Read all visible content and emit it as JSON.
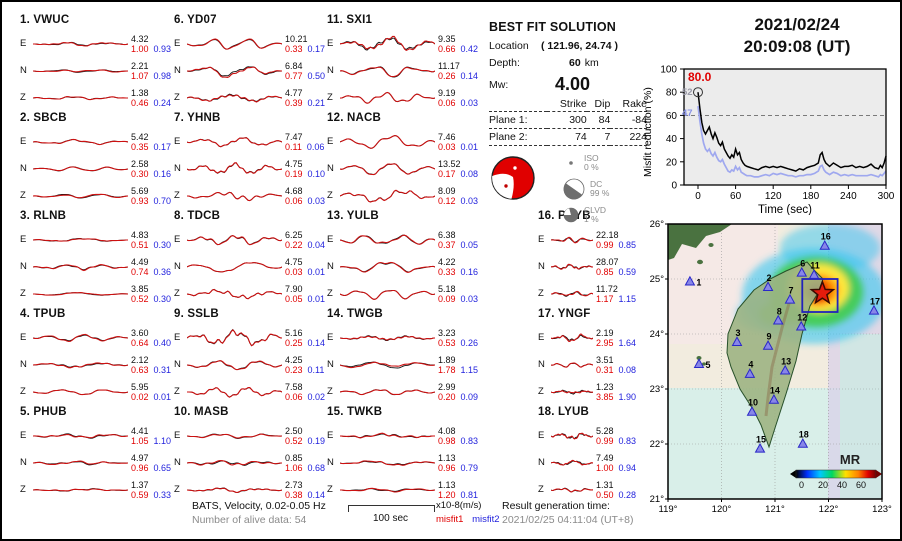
{
  "header": {
    "date": "2021/02/24",
    "time": "20:09:08  (UT)"
  },
  "stations": [
    {
      "num": "1.",
      "name": "VWUC",
      "comps": [
        {
          "c": "E",
          "amp": "4.32",
          "m1": "1.00",
          "m2": "0.93"
        },
        {
          "c": "N",
          "amp": "2.21",
          "m1": "1.07",
          "m2": "0.98"
        },
        {
          "c": "Z",
          "amp": "1.38",
          "m1": "0.46",
          "m2": "0.24"
        }
      ]
    },
    {
      "num": "2.",
      "name": "SBCB",
      "comps": [
        {
          "c": "E",
          "amp": "5.42",
          "m1": "0.35",
          "m2": "0.17"
        },
        {
          "c": "N",
          "amp": "2.58",
          "m1": "0.30",
          "m2": "0.16"
        },
        {
          "c": "Z",
          "amp": "5.69",
          "m1": "0.93",
          "m2": "0.70"
        }
      ]
    },
    {
      "num": "3.",
      "name": "RLNB",
      "comps": [
        {
          "c": "E",
          "amp": "4.83",
          "m1": "0.51",
          "m2": "0.30"
        },
        {
          "c": "N",
          "amp": "4.49",
          "m1": "0.74",
          "m2": "0.36"
        },
        {
          "c": "Z",
          "amp": "3.85",
          "m1": "0.52",
          "m2": "0.30"
        }
      ]
    },
    {
      "num": "4.",
      "name": "TPUB",
      "comps": [
        {
          "c": "E",
          "amp": "3.60",
          "m1": "0.64",
          "m2": "0.40"
        },
        {
          "c": "N",
          "amp": "2.12",
          "m1": "0.63",
          "m2": "0.31"
        },
        {
          "c": "Z",
          "amp": "5.95",
          "m1": "0.02",
          "m2": "0.01"
        }
      ]
    },
    {
      "num": "5.",
      "name": "PHUB",
      "comps": [
        {
          "c": "E",
          "amp": "4.41",
          "m1": "1.05",
          "m2": "1.10"
        },
        {
          "c": "N",
          "amp": "4.97",
          "m1": "0.96",
          "m2": "0.65"
        },
        {
          "c": "Z",
          "amp": "1.37",
          "m1": "0.59",
          "m2": "0.33"
        }
      ]
    },
    {
      "num": "6.",
      "name": "YD07",
      "comps": [
        {
          "c": "E",
          "amp": "10.21",
          "m1": "0.33",
          "m2": "0.17"
        },
        {
          "c": "N",
          "amp": "6.84",
          "m1": "0.77",
          "m2": "0.50"
        },
        {
          "c": "Z",
          "amp": "4.77",
          "m1": "0.39",
          "m2": "0.21"
        }
      ]
    },
    {
      "num": "7.",
      "name": "YHNB",
      "comps": [
        {
          "c": "E",
          "amp": "7.47",
          "m1": "0.11",
          "m2": "0.06"
        },
        {
          "c": "N",
          "amp": "4.75",
          "m1": "0.19",
          "m2": "0.10"
        },
        {
          "c": "Z",
          "amp": "4.68",
          "m1": "0.06",
          "m2": "0.03"
        }
      ]
    },
    {
      "num": "8.",
      "name": "TDCB",
      "comps": [
        {
          "c": "E",
          "amp": "6.25",
          "m1": "0.22",
          "m2": "0.04"
        },
        {
          "c": "N",
          "amp": "4.75",
          "m1": "0.03",
          "m2": "0.01"
        },
        {
          "c": "Z",
          "amp": "7.90",
          "m1": "0.05",
          "m2": "0.01"
        }
      ]
    },
    {
      "num": "9.",
      "name": "SSLB",
      "comps": [
        {
          "c": "E",
          "amp": "5.16",
          "m1": "0.25",
          "m2": "0.14"
        },
        {
          "c": "N",
          "amp": "4.25",
          "m1": "0.23",
          "m2": "0.11"
        },
        {
          "c": "Z",
          "amp": "7.58",
          "m1": "0.06",
          "m2": "0.02"
        }
      ]
    },
    {
      "num": "10.",
      "name": "MASB",
      "comps": [
        {
          "c": "E",
          "amp": "2.50",
          "m1": "0.52",
          "m2": "0.19"
        },
        {
          "c": "N",
          "amp": "0.85",
          "m1": "1.06",
          "m2": "0.68"
        },
        {
          "c": "Z",
          "amp": "2.73",
          "m1": "0.38",
          "m2": "0.14"
        }
      ]
    },
    {
      "num": "11.",
      "name": "SXI1",
      "comps": [
        {
          "c": "E",
          "amp": "9.35",
          "m1": "0.66",
          "m2": "0.42"
        },
        {
          "c": "N",
          "amp": "11.17",
          "m1": "0.26",
          "m2": "0.14"
        },
        {
          "c": "Z",
          "amp": "9.19",
          "m1": "0.06",
          "m2": "0.03"
        }
      ]
    },
    {
      "num": "12.",
      "name": "NACB",
      "comps": [
        {
          "c": "E",
          "amp": "7.46",
          "m1": "0.03",
          "m2": "0.01"
        },
        {
          "c": "N",
          "amp": "13.52",
          "m1": "0.17",
          "m2": "0.08"
        },
        {
          "c": "Z",
          "amp": "8.09",
          "m1": "0.12",
          "m2": "0.03"
        }
      ]
    },
    {
      "num": "13.",
      "name": "YULB",
      "comps": [
        {
          "c": "E",
          "amp": "6.38",
          "m1": "0.37",
          "m2": "0.05"
        },
        {
          "c": "N",
          "amp": "4.22",
          "m1": "0.33",
          "m2": "0.16"
        },
        {
          "c": "Z",
          "amp": "5.18",
          "m1": "0.09",
          "m2": "0.03"
        }
      ]
    },
    {
      "num": "14.",
      "name": "TWGB",
      "comps": [
        {
          "c": "E",
          "amp": "3.23",
          "m1": "0.53",
          "m2": "0.26"
        },
        {
          "c": "N",
          "amp": "1.89",
          "m1": "1.78",
          "m2": "1.15"
        },
        {
          "c": "Z",
          "amp": "2.99",
          "m1": "0.20",
          "m2": "0.09"
        }
      ]
    },
    {
      "num": "15.",
      "name": "TWKB",
      "comps": [
        {
          "c": "E",
          "amp": "4.08",
          "m1": "0.98",
          "m2": "0.83"
        },
        {
          "c": "N",
          "amp": "1.13",
          "m1": "0.96",
          "m2": "0.79"
        },
        {
          "c": "Z",
          "amp": "1.13",
          "m1": "1.20",
          "m2": "0.81"
        }
      ]
    },
    {
      "num": "16.",
      "name": "PCYB",
      "comps": [
        {
          "c": "E",
          "amp": "22.18",
          "m1": "0.99",
          "m2": "0.85"
        },
        {
          "c": "N",
          "amp": "28.07",
          "m1": "0.85",
          "m2": "0.59"
        },
        {
          "c": "Z",
          "amp": "11.72",
          "m1": "1.17",
          "m2": "1.15"
        }
      ]
    },
    {
      "num": "17.",
      "name": "YNGF",
      "comps": [
        {
          "c": "E",
          "amp": "2.19",
          "m1": "2.95",
          "m2": "1.64"
        },
        {
          "c": "N",
          "amp": "3.51",
          "m1": "0.31",
          "m2": "0.08"
        },
        {
          "c": "Z",
          "amp": "1.23",
          "m1": "3.85",
          "m2": "1.90"
        }
      ]
    },
    {
      "num": "18.",
      "name": "LYUB",
      "comps": [
        {
          "c": "E",
          "amp": "5.28",
          "m1": "0.99",
          "m2": "0.83"
        },
        {
          "c": "N",
          "amp": "7.49",
          "m1": "1.00",
          "m2": "0.94"
        },
        {
          "c": "Z",
          "amp": "1.31",
          "m1": "0.50",
          "m2": "0.28"
        }
      ]
    }
  ],
  "solution": {
    "title": "BEST FIT SOLUTION",
    "location_label": "Location",
    "location": "( 121.96,  24.74 )",
    "depth_label": "Depth:",
    "depth": "60",
    "depth_unit": "km",
    "mw_label": "Mw:",
    "mw": "4.00",
    "table": {
      "headers": [
        "Strike",
        "Dip",
        "Rake"
      ],
      "rows": [
        {
          "label": "Plane 1:",
          "strike": "300",
          "dip": "84",
          "rake": "-84"
        },
        {
          "label": "Plane 2:",
          "strike": "74",
          "dip": "7",
          "rake": "224"
        }
      ]
    },
    "decomposition": [
      {
        "name": "ISO",
        "value": "0 %"
      },
      {
        "name": "DC",
        "value": "99 %"
      },
      {
        "name": "CLVD",
        "value": "1 %"
      }
    ]
  },
  "chart_data": {
    "type": "line",
    "title": "",
    "xlabel": "Time (sec)",
    "ylabel": "Misfit reduction (%)",
    "xlim": [
      0,
      300
    ],
    "ylim": [
      0,
      100
    ],
    "xticks": [
      0,
      60,
      120,
      180,
      240,
      300
    ],
    "yticks": [
      0,
      20,
      40,
      60,
      80,
      100
    ],
    "grid": false,
    "dashed_reference_y": 60,
    "annotations": {
      "best_value": "80.0",
      "black_count": "52",
      "blue_count": "47"
    },
    "series": [
      {
        "name": "misfit1",
        "color": "#000000",
        "points": [
          [
            0,
            80
          ],
          [
            3,
            66
          ],
          [
            6,
            54
          ],
          [
            9,
            47
          ],
          [
            12,
            44
          ],
          [
            15,
            47
          ],
          [
            18,
            50
          ],
          [
            21,
            44
          ],
          [
            24,
            40
          ],
          [
            27,
            45
          ],
          [
            30,
            41
          ],
          [
            33,
            36
          ],
          [
            36,
            34
          ],
          [
            39,
            37
          ],
          [
            42,
            31
          ],
          [
            45,
            28
          ],
          [
            48,
            25
          ],
          [
            51,
            23
          ],
          [
            54,
            26
          ],
          [
            57,
            24
          ],
          [
            60,
            31
          ],
          [
            63,
            26
          ],
          [
            66,
            28
          ],
          [
            69,
            22
          ],
          [
            72,
            19
          ],
          [
            75,
            17
          ],
          [
            78,
            16
          ],
          [
            84,
            15
          ],
          [
            90,
            14
          ],
          [
            96,
            13
          ],
          [
            102,
            15
          ],
          [
            108,
            16
          ],
          [
            114,
            15
          ],
          [
            120,
            16
          ],
          [
            126,
            15
          ],
          [
            132,
            16
          ],
          [
            138,
            15
          ],
          [
            144,
            14
          ],
          [
            150,
            13
          ],
          [
            156,
            12
          ],
          [
            162,
            14
          ],
          [
            168,
            13
          ],
          [
            174,
            15
          ],
          [
            180,
            16
          ],
          [
            186,
            17
          ],
          [
            192,
            19
          ],
          [
            195,
            26
          ],
          [
            198,
            28
          ],
          [
            201,
            22
          ],
          [
            204,
            19
          ],
          [
            210,
            16
          ],
          [
            216,
            19
          ],
          [
            222,
            17
          ],
          [
            228,
            15
          ],
          [
            234,
            16
          ],
          [
            240,
            16
          ],
          [
            246,
            17
          ],
          [
            252,
            15
          ],
          [
            258,
            16
          ],
          [
            264,
            15
          ],
          [
            270,
            16
          ],
          [
            276,
            18
          ],
          [
            282,
            15
          ],
          [
            288,
            14
          ],
          [
            291,
            17
          ],
          [
            294,
            15
          ],
          [
            297,
            19
          ],
          [
            300,
            25
          ]
        ]
      },
      {
        "name": "misfit2",
        "color": "#9fa8ef",
        "points": [
          [
            0,
            68
          ],
          [
            3,
            55
          ],
          [
            6,
            44
          ],
          [
            9,
            36
          ],
          [
            12,
            31
          ],
          [
            15,
            29
          ],
          [
            18,
            31
          ],
          [
            21,
            27
          ],
          [
            24,
            25
          ],
          [
            27,
            28
          ],
          [
            30,
            24
          ],
          [
            33,
            21
          ],
          [
            36,
            20
          ],
          [
            39,
            22
          ],
          [
            42,
            18
          ],
          [
            45,
            15
          ],
          [
            48,
            12
          ],
          [
            51,
            11
          ],
          [
            54,
            13
          ],
          [
            57,
            12
          ],
          [
            60,
            16
          ],
          [
            63,
            13
          ],
          [
            66,
            15
          ],
          [
            69,
            11
          ],
          [
            72,
            10
          ],
          [
            75,
            9
          ],
          [
            78,
            8
          ],
          [
            84,
            8
          ],
          [
            90,
            7
          ],
          [
            96,
            7
          ],
          [
            102,
            8
          ],
          [
            108,
            9
          ],
          [
            114,
            8
          ],
          [
            120,
            10
          ],
          [
            126,
            9
          ],
          [
            132,
            10
          ],
          [
            138,
            9
          ],
          [
            144,
            8
          ],
          [
            150,
            8
          ],
          [
            156,
            7
          ],
          [
            162,
            8
          ],
          [
            168,
            8
          ],
          [
            174,
            9
          ],
          [
            180,
            9
          ],
          [
            186,
            10
          ],
          [
            192,
            12
          ],
          [
            195,
            16
          ],
          [
            198,
            17
          ],
          [
            201,
            13
          ],
          [
            204,
            11
          ],
          [
            210,
            9
          ],
          [
            216,
            11
          ],
          [
            222,
            10
          ],
          [
            228,
            8
          ],
          [
            234,
            9
          ],
          [
            240,
            8
          ],
          [
            246,
            9
          ],
          [
            252,
            8
          ],
          [
            258,
            8
          ],
          [
            264,
            8
          ],
          [
            270,
            8
          ],
          [
            276,
            9
          ],
          [
            282,
            8
          ],
          [
            288,
            7
          ],
          [
            291,
            9
          ],
          [
            294,
            8
          ],
          [
            297,
            10
          ],
          [
            300,
            12
          ]
        ]
      }
    ]
  },
  "map": {
    "xticks": [
      "119°",
      "120°",
      "121°",
      "122°",
      "123°"
    ],
    "yticks": [
      "26°",
      "25°",
      "24°",
      "23°",
      "22°",
      "21°"
    ],
    "lon_range": [
      119,
      123
    ],
    "lat_range": [
      21,
      26
    ],
    "epicenter": {
      "lon": 121.96,
      "lat": 24.74
    },
    "search_box": {
      "lon_min": 121.51,
      "lat_min": 24.4,
      "lon_max": 122.17,
      "lat_max": 25.0
    },
    "stations": [
      {
        "id": "1",
        "lon": 119.41,
        "lat": 24.95
      },
      {
        "id": "2",
        "lon": 120.87,
        "lat": 24.85
      },
      {
        "id": "3",
        "lon": 120.29,
        "lat": 23.85
      },
      {
        "id": "4",
        "lon": 120.53,
        "lat": 23.27
      },
      {
        "id": "5",
        "lon": 119.58,
        "lat": 23.45
      },
      {
        "id": "6",
        "lon": 121.5,
        "lat": 25.11
      },
      {
        "id": "7",
        "lon": 121.28,
        "lat": 24.62
      },
      {
        "id": "8",
        "lon": 121.06,
        "lat": 24.24
      },
      {
        "id": "9",
        "lon": 120.87,
        "lat": 23.78
      },
      {
        "id": "10",
        "lon": 120.57,
        "lat": 22.58
      },
      {
        "id": "11",
        "lon": 121.73,
        "lat": 25.07
      },
      {
        "id": "12",
        "lon": 121.49,
        "lat": 24.13
      },
      {
        "id": "13",
        "lon": 121.19,
        "lat": 23.33
      },
      {
        "id": "14",
        "lon": 120.98,
        "lat": 22.8
      },
      {
        "id": "15",
        "lon": 120.72,
        "lat": 21.91
      },
      {
        "id": "16",
        "lon": 121.93,
        "lat": 25.6
      },
      {
        "id": "17",
        "lon": 122.85,
        "lat": 24.42
      },
      {
        "id": "18",
        "lon": 121.52,
        "lat": 22.0
      }
    ],
    "colorbar": {
      "label": "MR",
      "ticks": [
        "0",
        "20",
        "40",
        "60"
      ]
    }
  },
  "footer": {
    "line1": "BATS, Velocity, 0.02-0.05 Hz",
    "line2": "Number of alive data: 54",
    "scalebar": "100 sec",
    "units": "x10-8(m/s)",
    "misfit1": "misfit1",
    "misfit2": "misfit2",
    "result_label": "Result generation time:",
    "result_time": "2021/02/25 04:11:04 (UT+8)"
  }
}
